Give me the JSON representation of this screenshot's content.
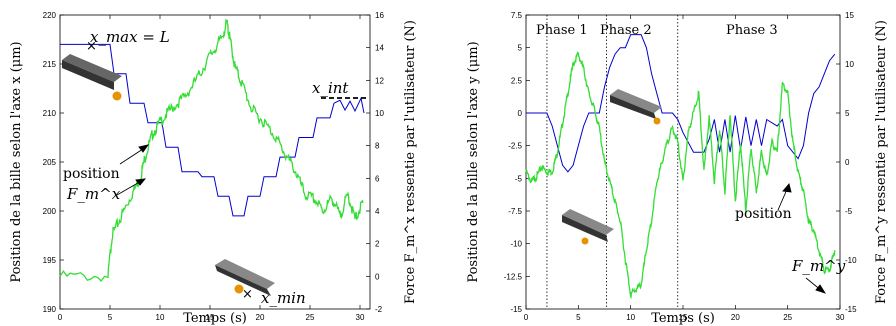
{
  "chart_data": [
    {
      "type": "line",
      "xlabel": "Temps (s)",
      "ylabel": "Position de la bille selon l'axe x (μm)",
      "y2label": "Force F_m^x ressentie par l'utilisateur (N)",
      "xlim": [
        0,
        31
      ],
      "ylim": [
        190,
        220
      ],
      "y2lim": [
        -2,
        16
      ],
      "xticks": [
        "0",
        "5",
        "10",
        "15",
        "20",
        "25",
        "30"
      ],
      "yticks": [
        "190",
        "195",
        "200",
        "205",
        "210",
        "215",
        "220"
      ],
      "y2ticks": [
        "-2",
        "0",
        "2",
        "4",
        "6",
        "8",
        "10",
        "12",
        "14",
        "16"
      ],
      "annotations": [
        "x_max = L",
        "x_int",
        "x_min",
        "position",
        "F_m^x"
      ],
      "series": [
        {
          "name": "position",
          "axis": "left",
          "color": "#0000cc",
          "x": [
            0,
            5,
            5.4,
            6.6,
            7,
            8.4,
            8.8,
            10.2,
            10.6,
            11.8,
            12.2,
            13.8,
            14.2,
            15.4,
            15.8,
            16.9,
            17.3,
            18.4,
            18.8,
            20,
            20.4,
            21.6,
            22,
            23.5,
            23.9,
            25.3,
            25.7,
            27,
            27.4,
            28,
            28.5,
            29,
            29.5,
            30.1,
            30.4
          ],
          "y": [
            217,
            217,
            214,
            214,
            211,
            211,
            209,
            209,
            206.5,
            206.5,
            204,
            204,
            203.5,
            203.5,
            201.5,
            201.5,
            199.5,
            199.5,
            201.5,
            201.5,
            203.5,
            203.5,
            205.5,
            205.5,
            207.5,
            207.5,
            209.5,
            209.5,
            211,
            211.3,
            210.3,
            211.2,
            210.2,
            211.5,
            210
          ]
        },
        {
          "name": "F_m^x",
          "axis": "right",
          "color": "#33dd33",
          "x": [
            0,
            4.8,
            5.2,
            6,
            7,
            8,
            8.6,
            9.3,
            10.2,
            11.2,
            12.5,
            13.8,
            15,
            16,
            16.7,
            17,
            17.5,
            18.2,
            19.2,
            20.3,
            21.5,
            22.5,
            23.5,
            24.5,
            25.5,
            26.3,
            27.2,
            28,
            28.8,
            29.5,
            30.3
          ],
          "y": [
            0,
            0,
            2.5,
            3.5,
            4.8,
            6,
            7.5,
            8.8,
            9.6,
            10.3,
            11,
            12.2,
            13.5,
            14.4,
            15.5,
            14.5,
            12.8,
            11.8,
            10.2,
            9.5,
            8.6,
            7.5,
            6.5,
            5,
            4.7,
            4,
            4.8,
            3.7,
            5,
            3.5,
            4.5
          ]
        }
      ]
    },
    {
      "type": "line",
      "xlabel": "Temps (s)",
      "ylabel": "Position de la bille selon l'axe y (μm)",
      "y2label": "Force F_m^y ressentie par l'utilisateur (N)",
      "xlim": [
        0,
        30
      ],
      "ylim": [
        -15,
        7.5
      ],
      "y2lim": [
        -15,
        15
      ],
      "xticks": [
        "0",
        "5",
        "10",
        "15",
        "20",
        "25",
        "30"
      ],
      "yticks": [
        "-15",
        "-12.5",
        "-10",
        "-7.5",
        "-5",
        "-2.5",
        "0",
        "2.5",
        "5",
        "7.5"
      ],
      "y2ticks": [
        "-15",
        "-10",
        "-5",
        "0",
        "5",
        "10",
        "15"
      ],
      "phases": [
        "Phase 1",
        "Phase 2",
        "Phase 3"
      ],
      "phase_boundaries": [
        2,
        7.7,
        14.5
      ],
      "annotations": [
        "position",
        "F_m^y"
      ],
      "series": [
        {
          "name": "position",
          "axis": "left",
          "color": "#0000cc",
          "x": [
            0,
            2,
            2.5,
            3,
            3.5,
            4,
            4.5,
            5,
            5.5,
            6,
            7,
            7.5,
            8,
            8.5,
            9,
            9.5,
            10,
            11,
            11.5,
            12,
            12.5,
            13,
            14,
            14.5,
            15,
            16,
            17,
            17.5,
            18,
            18.5,
            19,
            19.5,
            20,
            20.5,
            21,
            21.5,
            22,
            22.5,
            23,
            24,
            24.5,
            25,
            26,
            26.5,
            27,
            27.5,
            28,
            28.5,
            29,
            29.5
          ],
          "y": [
            0,
            0,
            -1,
            -2.5,
            -4,
            -4.5,
            -4,
            -2.5,
            -1,
            0,
            0,
            2,
            3.5,
            4.5,
            5,
            5,
            6,
            6,
            5,
            3,
            1.5,
            0,
            0,
            -0.5,
            -1.5,
            -3,
            -3,
            -2,
            -0.5,
            -3,
            -0.5,
            -3,
            -0.2,
            -2.8,
            -0.3,
            -2.5,
            -0.5,
            -2.5,
            -0.5,
            -1,
            -0.5,
            -2.5,
            -3.5,
            -2.5,
            0,
            1.5,
            2,
            3,
            4,
            4.5
          ]
        },
        {
          "name": "F_m^y",
          "axis": "right",
          "color": "#33dd33",
          "x": [
            0,
            0.5,
            1,
            1.5,
            2,
            2.5,
            3,
            3.5,
            4,
            4.5,
            5,
            5.5,
            6,
            6.5,
            7,
            7.5,
            8,
            8.5,
            9,
            9.5,
            10,
            10.5,
            11,
            11.5,
            12,
            12.5,
            13,
            13.5,
            14,
            14.5,
            15,
            15.5,
            16,
            16.5,
            17,
            17.5,
            18,
            18.5,
            19,
            19.5,
            20,
            20.5,
            21,
            21.5,
            22,
            22.5,
            23,
            23.5,
            24,
            24.5,
            25,
            25.5,
            26,
            26.5,
            27,
            27.5,
            28,
            28.5,
            29,
            29.5
          ],
          "y": [
            -1,
            -2,
            -1.5,
            -0.5,
            -1,
            -1,
            1,
            4,
            7,
            10,
            11,
            9.5,
            7,
            5.5,
            3.5,
            0,
            -2,
            -4,
            -6,
            -10,
            -13.5,
            -13,
            -12.5,
            -9,
            -6,
            -2,
            0,
            2,
            3.5,
            2,
            -2,
            3,
            5,
            7,
            -1,
            4.5,
            -2,
            3.5,
            -3,
            5,
            -4,
            2,
            -5,
            1.5,
            -3,
            1,
            -1.5,
            2,
            1,
            8,
            7,
            2,
            -1,
            -3,
            -6,
            -7,
            -9,
            -11,
            -11,
            -9
          ]
        }
      ]
    }
  ]
}
